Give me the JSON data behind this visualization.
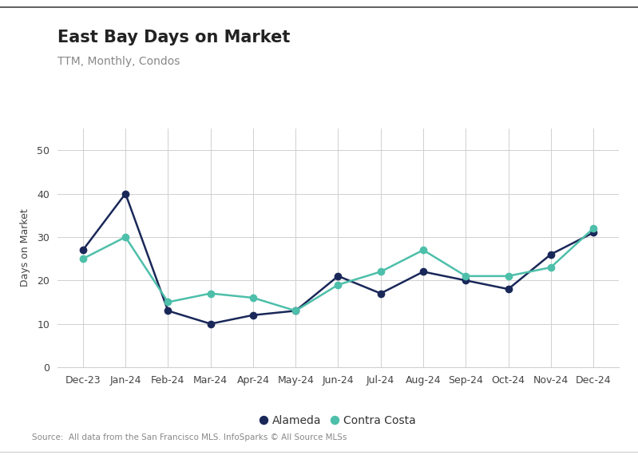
{
  "title": "East Bay Days on Market",
  "subtitle": "TTM, Monthly, Condos",
  "ylabel": "Days on Market",
  "source": "Source:  All data from the San Francisco MLS. InfoSparks © All Source MLSs",
  "x_labels": [
    "Dec-23",
    "Jan-24",
    "Feb-24",
    "Mar-24",
    "Apr-24",
    "May-24",
    "Jun-24",
    "Jul-24",
    "Aug-24",
    "Sep-24",
    "Oct-24",
    "Nov-24",
    "Dec-24"
  ],
  "alameda": [
    27,
    40,
    13,
    10,
    12,
    13,
    21,
    17,
    22,
    20,
    18,
    26,
    31
  ],
  "contra_costa": [
    25,
    30,
    15,
    17,
    16,
    13,
    19,
    22,
    27,
    21,
    21,
    23,
    32
  ],
  "alameda_color": "#1a2859",
  "contra_costa_color": "#4dbfaa",
  "background_color": "#ffffff",
  "grid_color": "#d0d0d0",
  "ylim": [
    0,
    55
  ],
  "yticks": [
    0,
    10,
    20,
    30,
    40,
    50
  ],
  "title_fontsize": 15,
  "subtitle_fontsize": 10,
  "tick_fontsize": 9,
  "legend_fontsize": 10,
  "source_fontsize": 7.5,
  "ylabel_fontsize": 9,
  "line_width": 1.8,
  "marker_size": 6
}
